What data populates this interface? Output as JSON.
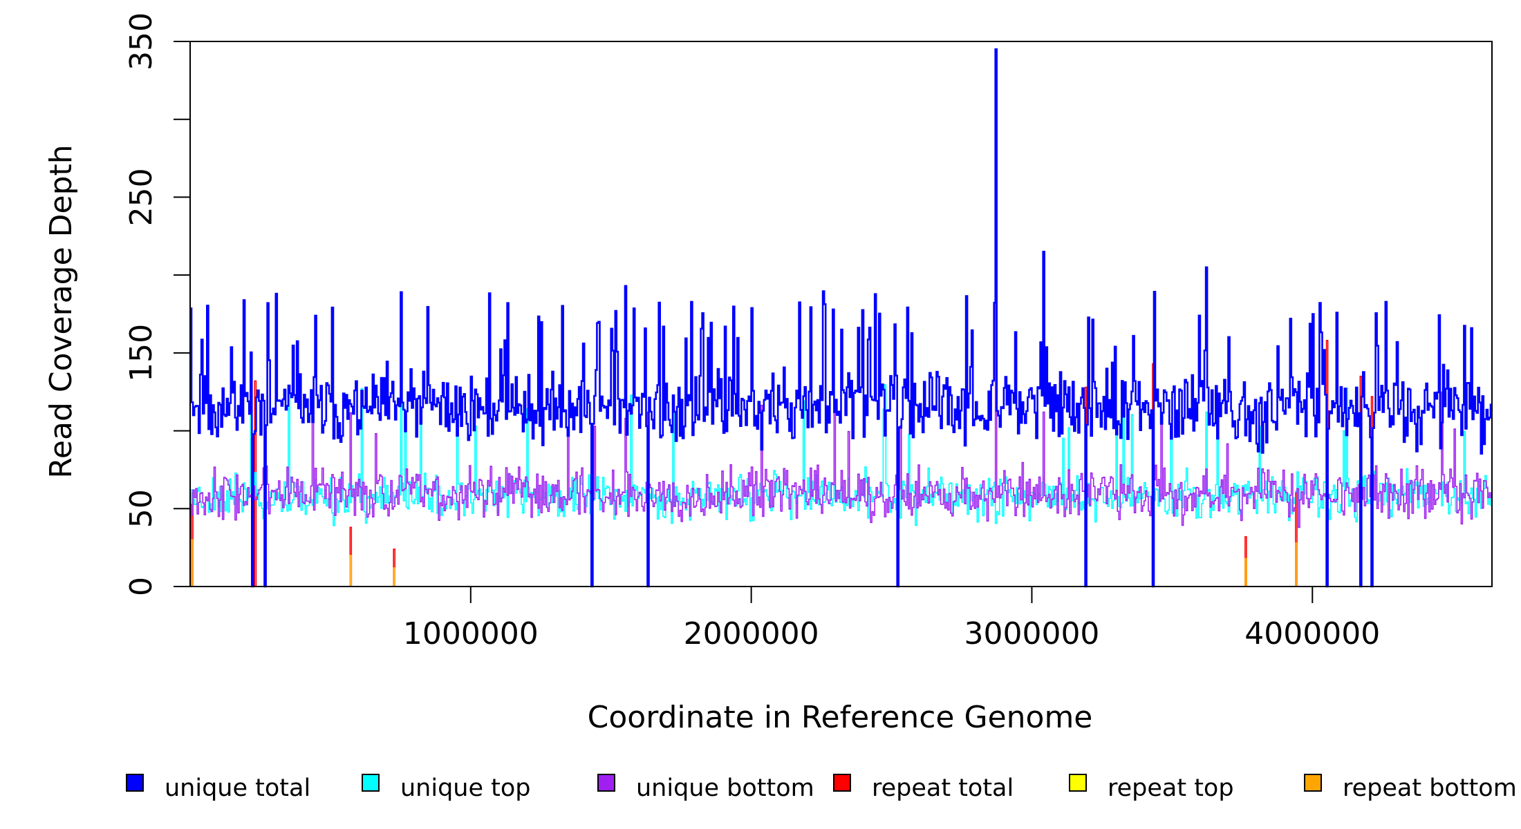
{
  "chart_data": {
    "type": "line",
    "xlabel": "Coordinate in Reference Genome",
    "ylabel": "Read Coverage Depth",
    "xlim": [
      0,
      4640000
    ],
    "ylim": [
      0,
      350
    ],
    "x_ticks": [
      1000000,
      2000000,
      3000000,
      4000000
    ],
    "x_tick_labels": [
      "1000000",
      "2000000",
      "3000000",
      "4000000"
    ],
    "y_ticks": [
      0,
      50,
      100,
      150,
      200,
      250,
      300,
      350
    ],
    "y_tick_labels": [
      "0",
      "50",
      "",
      "150",
      "",
      "250",
      "",
      "350"
    ],
    "grid": false,
    "legend_position": "bottom",
    "bin_size": 5000,
    "series": [
      {
        "name": "unique total",
        "color": "#0000ff",
        "baseline": 115,
        "noise": 22,
        "spike_chance": 0.08,
        "spike_range": [
          150,
          190
        ],
        "seed": 11,
        "spikes": [
          [
            2870000,
            345
          ],
          [
            3040000,
            215
          ],
          [
            3620000,
            205
          ],
          [
            1550000,
            193
          ],
          [
            750000,
            189
          ],
          [
            275000,
            182
          ],
          [
            1130000,
            182
          ]
        ],
        "dips": [
          [
            220000,
            0
          ],
          [
            265000,
            0
          ],
          [
            1430000,
            0
          ],
          [
            1630000,
            0
          ],
          [
            2520000,
            0
          ],
          [
            3190000,
            0
          ],
          [
            3430000,
            0
          ],
          [
            4050000,
            0
          ],
          [
            4170000,
            0
          ],
          [
            4210000,
            0
          ]
        ]
      },
      {
        "name": "unique top",
        "color": "#00ffff",
        "baseline": 58,
        "noise": 14,
        "spike_chance": 0.02,
        "spike_range": [
          95,
          130
        ],
        "seed": 23,
        "spikes": [
          [
            750000,
            132
          ],
          [
            1720000,
            118
          ],
          [
            3620000,
            112
          ]
        ],
        "dips": [
          [
            220000,
            0
          ],
          [
            265000,
            0
          ],
          [
            1430000,
            0
          ],
          [
            1630000,
            0
          ],
          [
            2520000,
            0
          ],
          [
            3190000,
            0
          ],
          [
            3430000,
            0
          ],
          [
            4050000,
            0
          ],
          [
            4170000,
            0
          ],
          [
            4210000,
            0
          ]
        ]
      },
      {
        "name": "unique bottom",
        "color": "#a020f0",
        "baseline": 60,
        "noise": 16,
        "spike_chance": 0.02,
        "spike_range": [
          90,
          125
        ],
        "seed": 37,
        "spikes": [
          [
            2870000,
            203
          ],
          [
            1550000,
            108
          ],
          [
            3040000,
            112
          ]
        ],
        "dips": [
          [
            220000,
            0
          ],
          [
            265000,
            0
          ],
          [
            1430000,
            0
          ],
          [
            1630000,
            0
          ],
          [
            2520000,
            0
          ],
          [
            3190000,
            0
          ],
          [
            3430000,
            0
          ],
          [
            4050000,
            0
          ],
          [
            4170000,
            0
          ],
          [
            4210000,
            0
          ]
        ]
      },
      {
        "name": "repeat total",
        "color": "#ff0000",
        "baseline": 0,
        "noise": 0,
        "spike_chance": 0,
        "spike_range": [
          0,
          0
        ],
        "seed": 41,
        "spikes": [
          [
            5000,
            60
          ],
          [
            230000,
            132
          ],
          [
            570000,
            38
          ],
          [
            725000,
            24
          ],
          [
            1630000,
            112
          ],
          [
            3190000,
            128
          ],
          [
            3430000,
            143
          ],
          [
            3760000,
            32
          ],
          [
            3940000,
            60
          ],
          [
            4050000,
            158
          ],
          [
            4170000,
            135
          ],
          [
            4210000,
            122
          ]
        ],
        "dips": []
      },
      {
        "name": "repeat top",
        "color": "#ffff00",
        "baseline": 0,
        "noise": 0,
        "spike_chance": 0,
        "spike_range": [
          0,
          0
        ],
        "seed": 53,
        "spikes": [],
        "dips": []
      },
      {
        "name": "repeat bottom",
        "color": "#ffa500",
        "baseline": 0,
        "noise": 0,
        "spike_chance": 0,
        "spike_range": [
          0,
          0
        ],
        "seed": 67,
        "spikes": [
          [
            5000,
            30
          ],
          [
            570000,
            20
          ],
          [
            725000,
            12
          ],
          [
            1430000,
            8
          ],
          [
            3760000,
            18
          ],
          [
            3940000,
            28
          ]
        ],
        "dips": []
      }
    ]
  }
}
